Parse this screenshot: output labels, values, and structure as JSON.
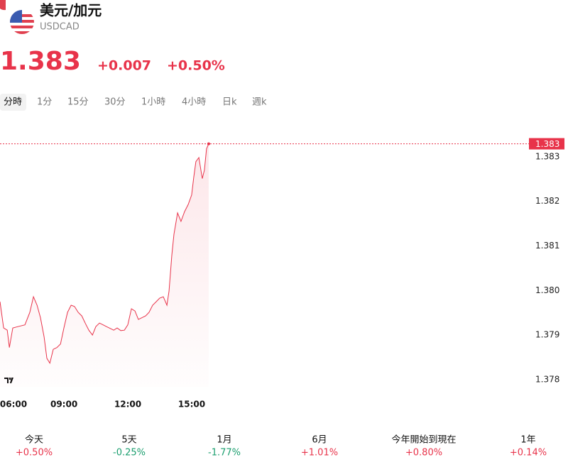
{
  "header": {
    "title": "美元/加元",
    "symbol": "USDCAD",
    "price": "1.383",
    "change": "+0.007",
    "change_percent": "+0.50%",
    "color": "#e8334a"
  },
  "tabs": [
    "分時",
    "1分",
    "15分",
    "30分",
    "1小時",
    "4小時",
    "日k",
    "週k"
  ],
  "chart_data": {
    "type": "line",
    "x": [
      6.03,
      6.2,
      6.37,
      6.47,
      6.63,
      6.87,
      7.2,
      7.43,
      7.6,
      7.77,
      7.93,
      8.1,
      8.23,
      8.37,
      8.53,
      8.7,
      8.87,
      9.03,
      9.2,
      9.37,
      9.53,
      9.7,
      9.87,
      10.03,
      10.2,
      10.37,
      10.53,
      10.7,
      10.87,
      11.03,
      11.2,
      11.37,
      11.53,
      11.7,
      11.87,
      12.03,
      12.2,
      12.37,
      12.53,
      12.7,
      12.87,
      13.03,
      13.2,
      13.37,
      13.53,
      13.7,
      13.87,
      13.97,
      14.1,
      14.2,
      14.37,
      14.53,
      14.7,
      14.87,
      15.03,
      15.13,
      15.23,
      15.37,
      15.53,
      15.63,
      15.73,
      15.83
    ],
    "series": [
      {
        "name": "USDCAD",
        "color": "#e8334a",
        "values": [
          1.37975,
          1.37916,
          1.37911,
          1.37872,
          1.37916,
          1.37919,
          1.37923,
          1.37951,
          1.37986,
          1.37967,
          1.37939,
          1.37896,
          1.37848,
          1.37837,
          1.37868,
          1.37872,
          1.3788,
          1.37916,
          1.37951,
          1.37967,
          1.37964,
          1.37951,
          1.37943,
          1.37927,
          1.37911,
          1.379,
          1.37919,
          1.37927,
          1.37923,
          1.37919,
          1.37915,
          1.37911,
          1.37916,
          1.3791,
          1.37911,
          1.37923,
          1.37959,
          1.37954,
          1.37935,
          1.37939,
          1.37943,
          1.37951,
          1.37967,
          1.37975,
          1.37983,
          1.37986,
          1.37967,
          1.37999,
          1.38079,
          1.38126,
          1.38174,
          1.38155,
          1.38177,
          1.38193,
          1.38214,
          1.38254,
          1.38289,
          1.38298,
          1.38251,
          1.3827,
          1.38318,
          1.38329
        ]
      }
    ],
    "xlim": [
      6.03,
      30.87
    ],
    "xticks": [
      {
        "value": 6,
        "label": "06:00"
      },
      {
        "value": 9,
        "label": "09:00"
      },
      {
        "value": 12,
        "label": "12:00"
      },
      {
        "value": 15,
        "label": "15:00"
      }
    ],
    "ylim": [
      1.37784,
      1.38349
    ],
    "yticks": [
      1.378,
      1.379,
      {
        "value": 1.38,
        "label": "1.380"
      },
      1.381,
      1.382,
      1.383
    ],
    "last_price": {
      "value": 1.38329,
      "label": "1.383"
    }
  },
  "periods": [
    {
      "label": "今天",
      "change": "+0.50%",
      "color": "#e8334a"
    },
    {
      "label": "5天",
      "change": "-0.25%",
      "color": "#1a9e6e"
    },
    {
      "label": "1月",
      "change": "-1.77%",
      "color": "#1a9e6e"
    },
    {
      "label": "6月",
      "change": "+1.01%",
      "color": "#e8334a"
    },
    {
      "label": "今年開始到現在",
      "change": "+0.80%",
      "color": "#e8334a"
    },
    {
      "label": "1年",
      "change": "+0.14%",
      "color": "#e8334a"
    }
  ]
}
